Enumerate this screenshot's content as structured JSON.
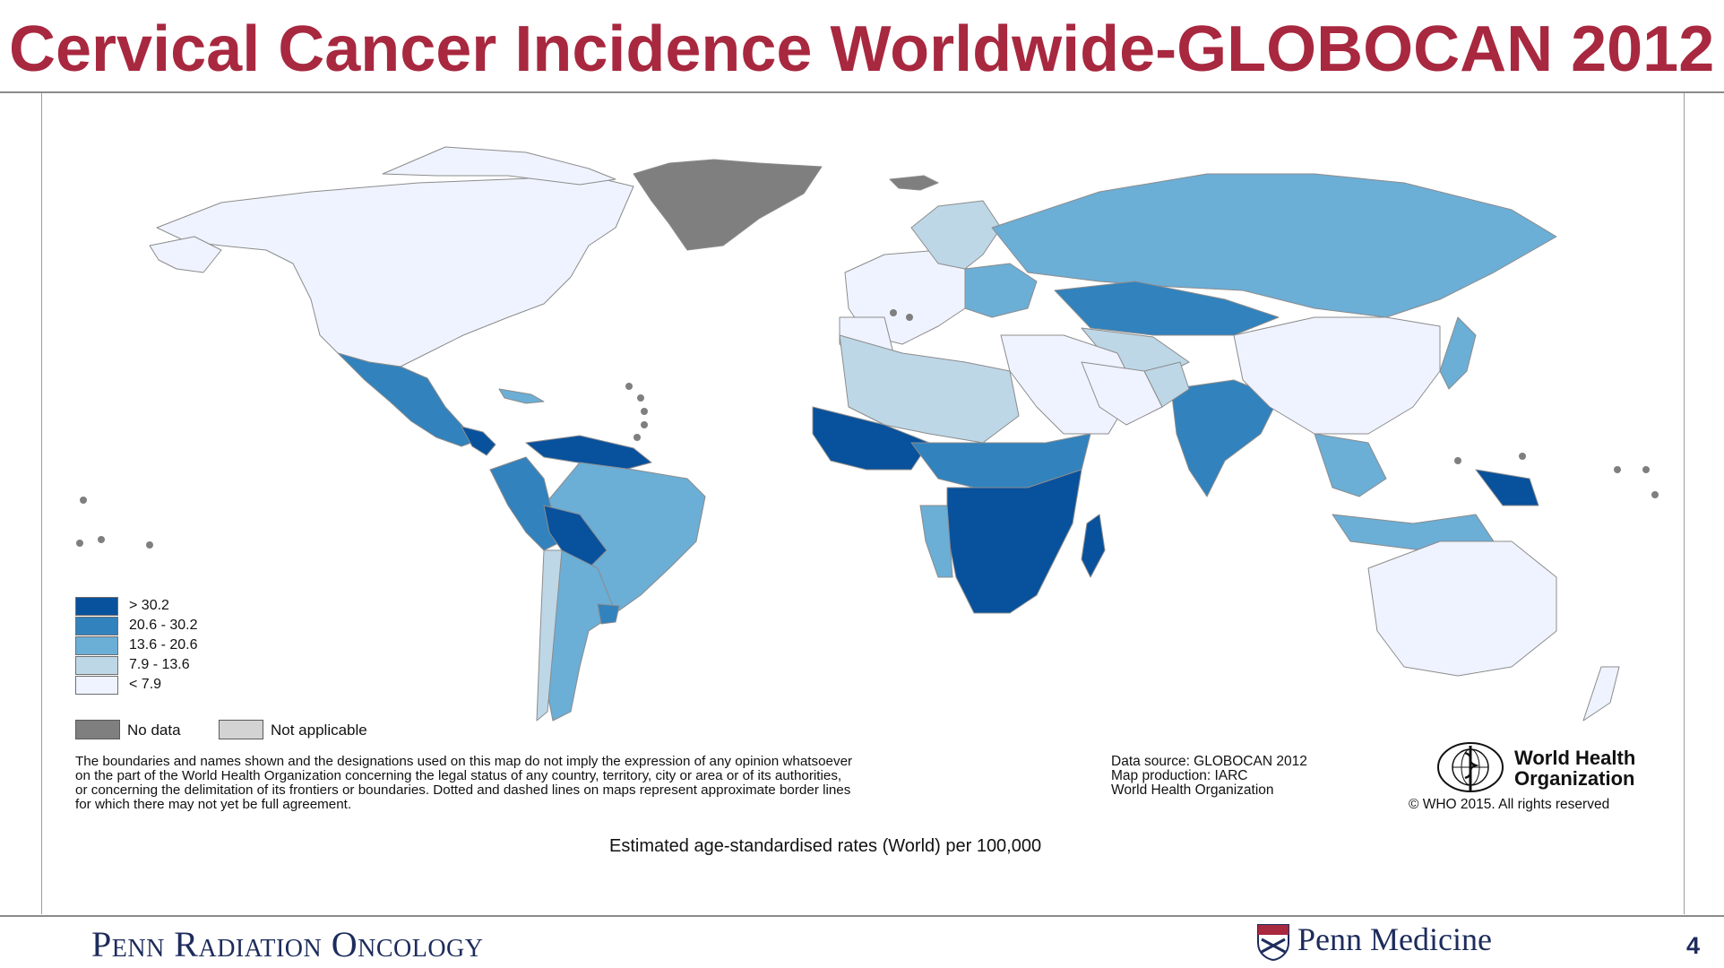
{
  "slide": {
    "title": "Cervical Cancer Incidence Worldwide-GLOBOCAN 2012",
    "page_number": "4"
  },
  "map": {
    "legend": [
      {
        "label": "> 30.2",
        "color": "#08519c"
      },
      {
        "label": "20.6  -  30.2",
        "color": "#3182bd"
      },
      {
        "label": "13.6  -  20.6",
        "color": "#6baed6"
      },
      {
        "label": "7.9  -  13.6",
        "color": "#bdd7e7"
      },
      {
        "label": "< 7.9",
        "color": "#eff3ff"
      }
    ],
    "no_data": {
      "label": "No data",
      "color": "#7f7f7f"
    },
    "not_applicable": {
      "label": "Not applicable",
      "color": "#d3d3d3"
    },
    "disclaimer": [
      "The boundaries and names shown and the designations used on this map do not imply the expression of any opinion whatsoever",
      "on the part of the World Health Organization concerning the legal status of any country, territory, city or area or of its authorities,",
      "or concerning the delimitation of its frontiers or boundaries. Dotted and dashed lines on maps represent approximate border lines",
      "for which there may not yet be full agreement."
    ],
    "source": [
      "Data source: GLOBOCAN 2012",
      "Map production: IARC",
      "World Health Organization"
    ],
    "who_name": [
      "World Health",
      "Organization"
    ],
    "copyright": "© WHO 2015. All rights reserved",
    "caption": "Estimated age-standardised rates (World) per 100,000"
  },
  "footer": {
    "left": "Penn Radiation Oncology",
    "right": "Penn Medicine"
  }
}
